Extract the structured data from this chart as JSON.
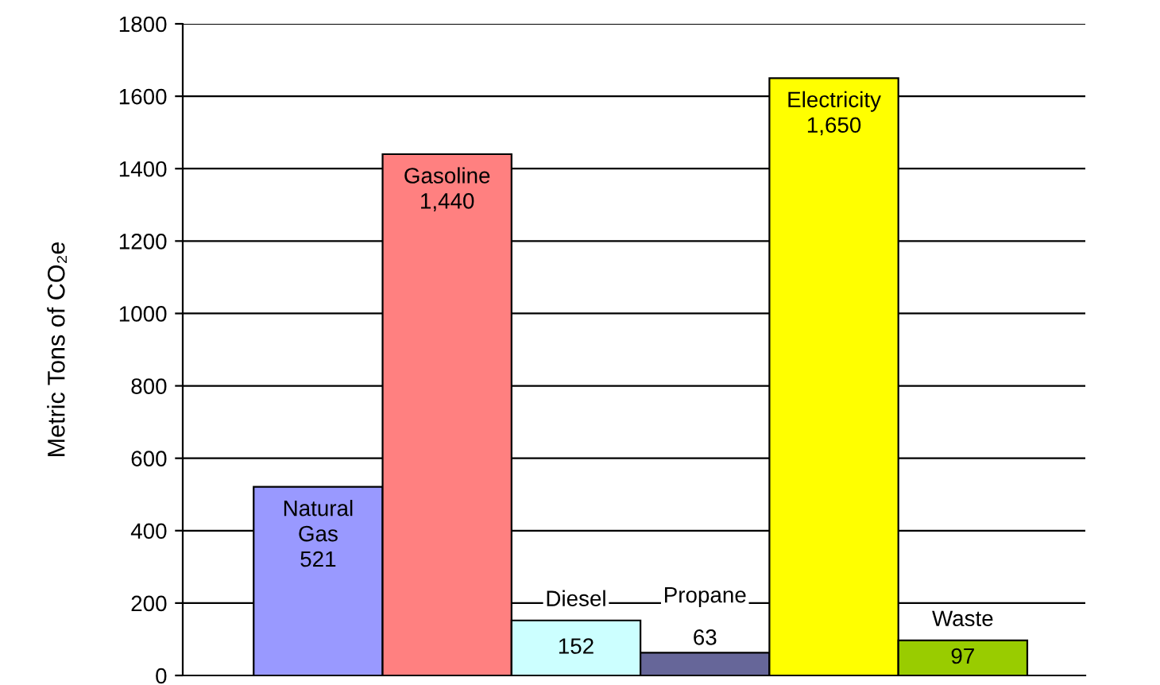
{
  "chart_data": {
    "type": "bar",
    "ylabel": "Metric Tons of CO₂e",
    "categories": [
      "Natural Gas",
      "Gasoline",
      "Diesel",
      "Propane",
      "Electricity",
      "Waste"
    ],
    "values": [
      521,
      1440,
      152,
      63,
      1650,
      97
    ],
    "colors": [
      "#9999ff",
      "#ff8080",
      "#ccffff",
      "#666699",
      "#ffff00",
      "#99cc00"
    ],
    "value_labels": [
      "521",
      "1,440",
      "152",
      "63",
      "1,650",
      "97"
    ],
    "ylim": [
      0,
      1800
    ],
    "yticks": [
      0,
      200,
      400,
      600,
      800,
      1000,
      1200,
      1400,
      1600,
      1800
    ],
    "grid": "y"
  }
}
